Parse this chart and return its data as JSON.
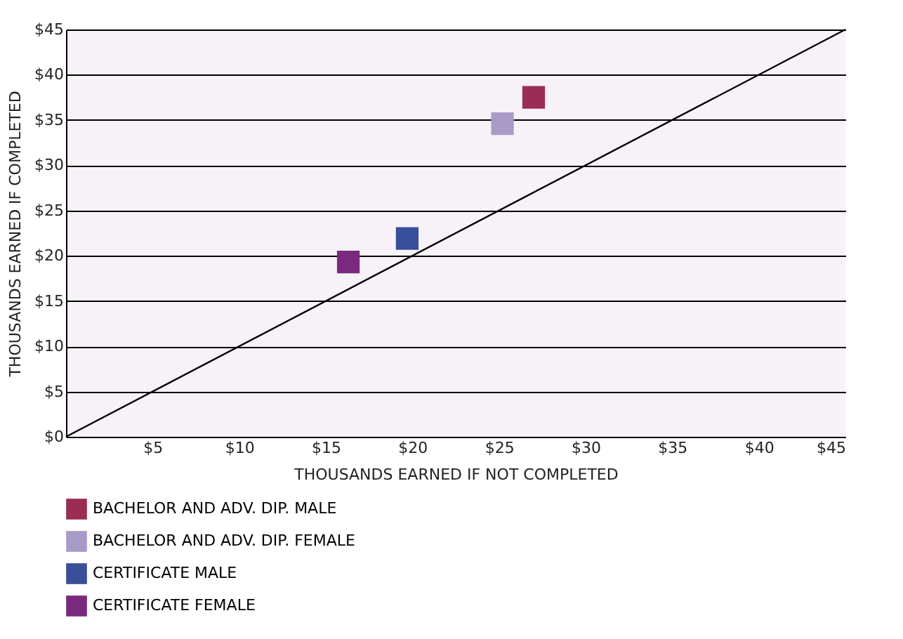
{
  "chart_data": {
    "type": "scatter",
    "xlabel": "THOUSANDS EARNED IF NOT COMPLETED",
    "ylabel": "THOUSANDS EARNED IF COMPLETED",
    "xlim": [
      0,
      45
    ],
    "ylim": [
      0,
      45
    ],
    "xticks": [
      {
        "value": 5,
        "label": "$5"
      },
      {
        "value": 10,
        "label": "$10"
      },
      {
        "value": 15,
        "label": "$15"
      },
      {
        "value": 20,
        "label": "$20"
      },
      {
        "value": 25,
        "label": "$25"
      },
      {
        "value": 30,
        "label": "$30"
      },
      {
        "value": 35,
        "label": "$35"
      },
      {
        "value": 40,
        "label": "$40"
      },
      {
        "value": 45,
        "label": "$45"
      }
    ],
    "yticks": [
      {
        "value": 0,
        "label": "$0"
      },
      {
        "value": 5,
        "label": "$5"
      },
      {
        "value": 10,
        "label": "$10"
      },
      {
        "value": 15,
        "label": "$15"
      },
      {
        "value": 20,
        "label": "$20"
      },
      {
        "value": 25,
        "label": "$25"
      },
      {
        "value": 30,
        "label": "$30"
      },
      {
        "value": 35,
        "label": "$35"
      },
      {
        "value": 40,
        "label": "$40"
      },
      {
        "value": 45,
        "label": "$45"
      }
    ],
    "grid": "y",
    "legend": "bottom",
    "marker": "square",
    "series": [
      {
        "name": "BACHELOR AND ADV. DIP. MALE",
        "color": "#9b2c54",
        "x": [
          27.0
        ],
        "values": [
          37.5
        ]
      },
      {
        "name": "BACHELOR AND ADV. DIP. FEMALE",
        "color": "#a99bc8",
        "x": [
          25.2
        ],
        "values": [
          34.6
        ]
      },
      {
        "name": "CERTIFICATE MALE",
        "color": "#3a4f9a",
        "x": [
          19.7
        ],
        "values": [
          21.9
        ]
      },
      {
        "name": "CERTIFICATE FEMALE",
        "color": "#7a2a7e",
        "x": [
          16.3
        ],
        "values": [
          19.3
        ]
      },
      {
        "type": "line",
        "color": "#000000",
        "marker": "none",
        "x": [
          0,
          45
        ],
        "values": [
          0,
          45
        ]
      }
    ]
  }
}
